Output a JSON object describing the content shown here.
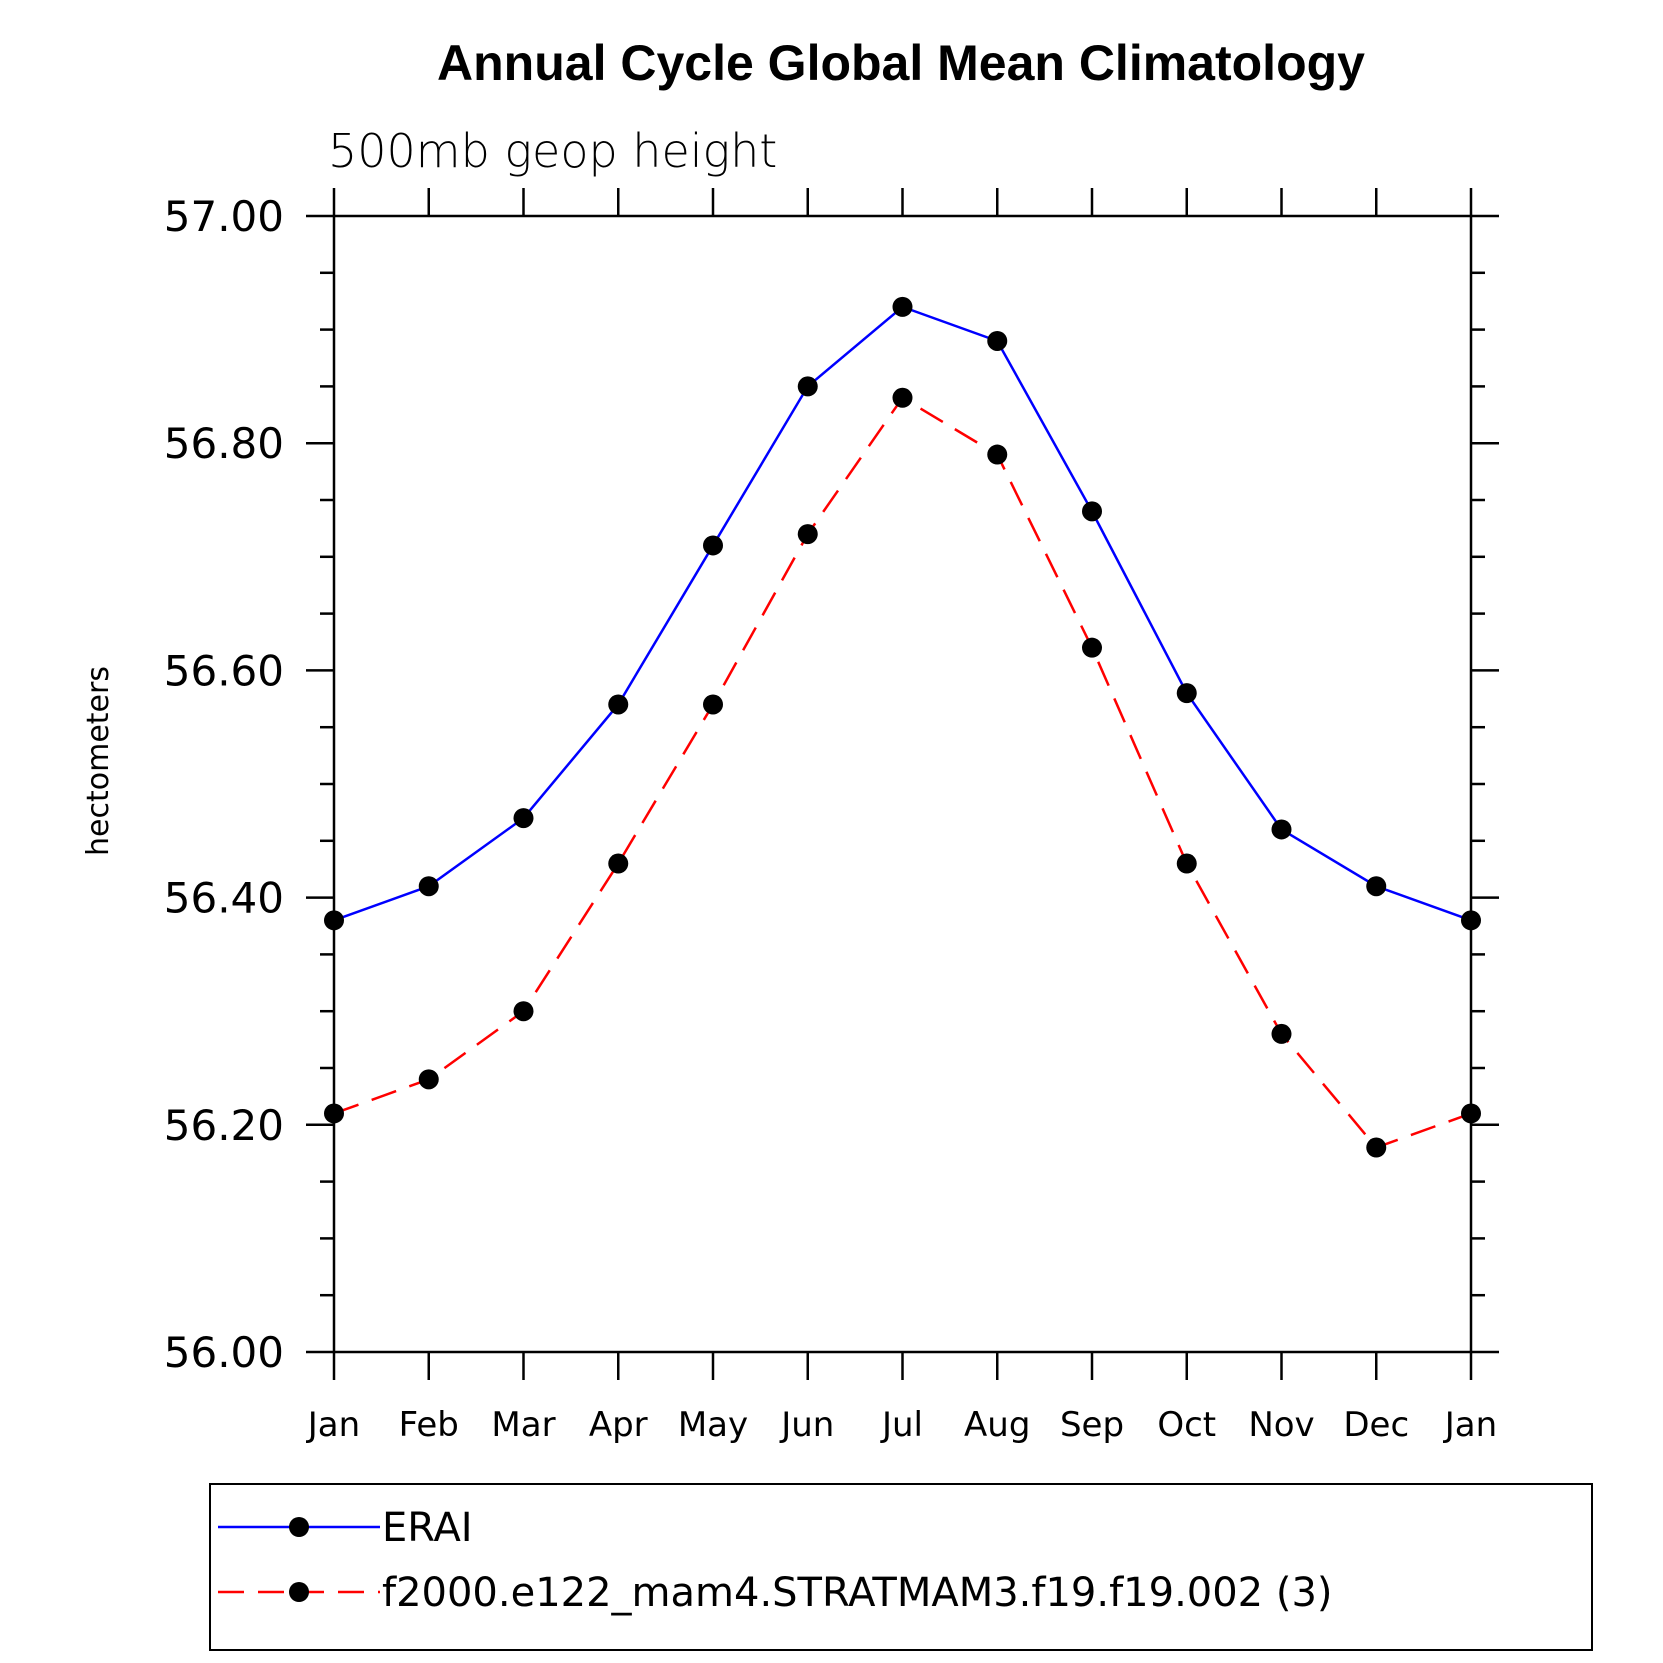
{
  "chart_data": {
    "type": "line",
    "title": "Annual Cycle Global Mean Climatology",
    "subtitle": "500mb geop height",
    "xlabel": "",
    "ylabel": "hectometers",
    "categories": [
      "Jan",
      "Feb",
      "Mar",
      "Apr",
      "May",
      "Jun",
      "Jul",
      "Aug",
      "Sep",
      "Oct",
      "Nov",
      "Dec",
      "Jan"
    ],
    "ylim": [
      56.0,
      57.0
    ],
    "yticks": [
      "56.00",
      "56.20",
      "56.40",
      "56.60",
      "56.80",
      "57.00"
    ],
    "grid": false,
    "legend_position": "bottom",
    "series": [
      {
        "name": "ERAI",
        "color": "#0000ff",
        "style": "solid",
        "marker": "filled-circle",
        "values": [
          56.38,
          56.41,
          56.47,
          56.57,
          56.71,
          56.85,
          56.92,
          56.89,
          56.74,
          56.58,
          56.46,
          56.41,
          56.38
        ]
      },
      {
        "name": "f2000.e122_mam4.STRATMAM3.f19.f19.002 (3)",
        "color": "#ff0000",
        "style": "dashed",
        "marker": "filled-circle",
        "values": [
          56.21,
          56.24,
          56.3,
          56.43,
          56.57,
          56.72,
          56.84,
          56.79,
          56.62,
          56.43,
          56.28,
          56.18,
          56.21
        ]
      }
    ]
  }
}
